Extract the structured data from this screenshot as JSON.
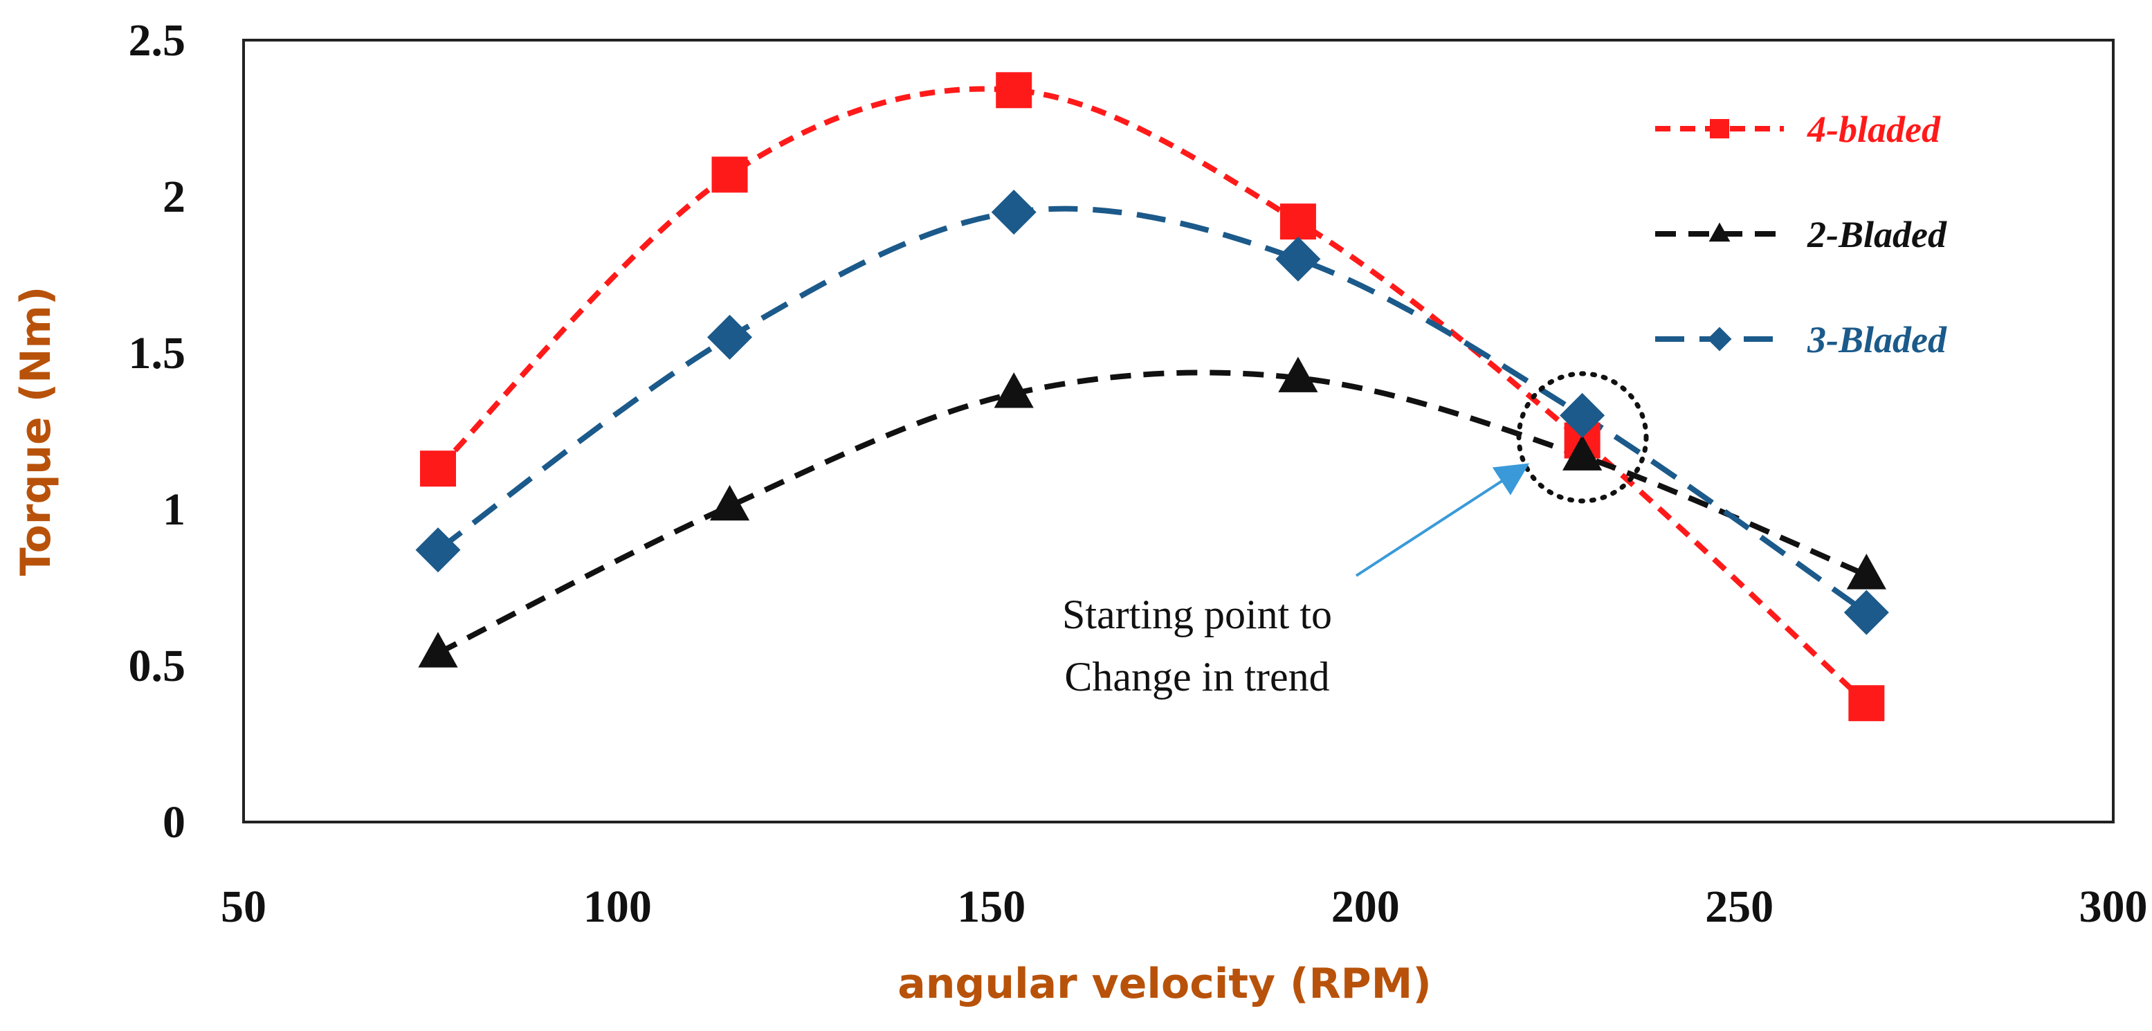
{
  "chart_data": {
    "type": "line",
    "title": "",
    "xlabel": "angular velocity (RPM)",
    "ylabel": "Torque (Nm)",
    "xlim": [
      50,
      300
    ],
    "ylim": [
      0,
      2.5
    ],
    "x_ticks": [
      "50",
      "100",
      "150",
      "200",
      "250",
      "300"
    ],
    "y_ticks": [
      "0",
      "0.5",
      "1",
      "1.5",
      "2",
      "2.5"
    ],
    "grid": false,
    "legend_position": "top-right",
    "series": [
      {
        "name": "4-bladed",
        "color": "#ff1a1a",
        "marker": "square",
        "line_style": "dashed",
        "x": [
          76,
          115,
          153,
          191,
          229,
          267
        ],
        "y": [
          1.13,
          2.07,
          2.34,
          1.92,
          1.22,
          0.38
        ]
      },
      {
        "name": "2-Bladed",
        "color": "#111111",
        "marker": "triangle",
        "line_style": "dashed",
        "x": [
          76,
          115,
          153,
          191,
          229,
          267
        ],
        "y": [
          0.54,
          1.01,
          1.37,
          1.42,
          1.17,
          0.79
        ]
      },
      {
        "name": "3-Bladed",
        "color": "#1b5a8a",
        "marker": "diamond",
        "line_style": "dashed",
        "x": [
          76,
          115,
          153,
          191,
          229,
          267
        ],
        "y": [
          0.87,
          1.55,
          1.95,
          1.8,
          1.3,
          0.67
        ]
      }
    ],
    "annotation": {
      "lines": [
        "Starting point to",
        "Change in trend"
      ],
      "target_x": 229,
      "target_y": 1.25,
      "arrow_color": "#3a9ad9"
    }
  },
  "colors": {
    "axis_title": "#b8520a",
    "axis_line": "#222222"
  }
}
